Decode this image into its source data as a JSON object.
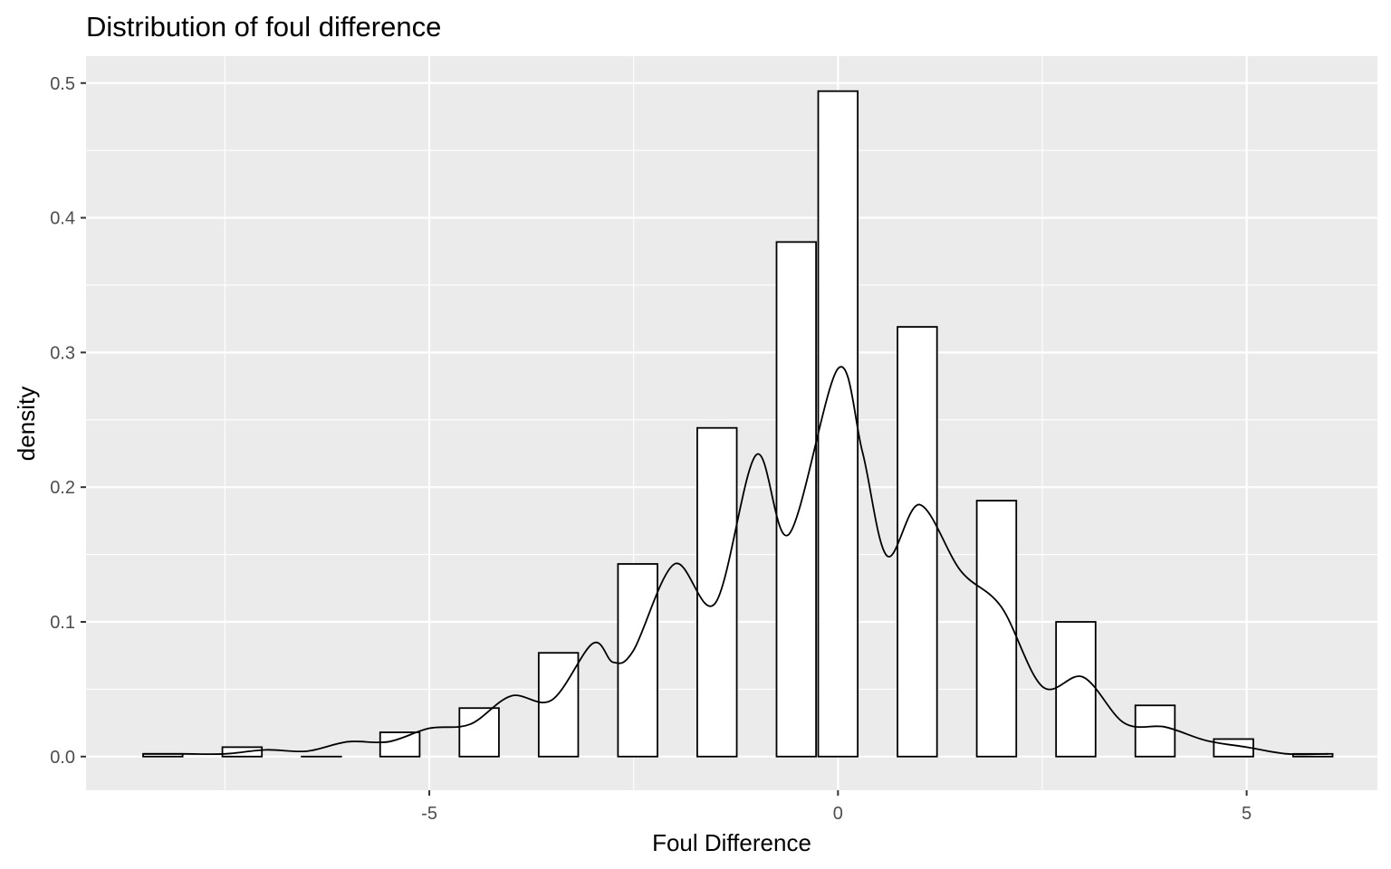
{
  "chart_data": {
    "type": "bar",
    "title": "Distribution of foul difference",
    "xlabel": "Foul Difference",
    "ylabel": "density",
    "xlim": [
      -9.2,
      6.6
    ],
    "ylim": [
      -0.025,
      0.52
    ],
    "x_ticks": [
      -5,
      0,
      5
    ],
    "x_tick_labels": [
      "-5",
      "0",
      "5"
    ],
    "y_ticks": [
      0.0,
      0.1,
      0.2,
      0.3,
      0.4,
      0.5
    ],
    "y_tick_labels": [
      "0.0",
      "0.1",
      "0.2",
      "0.3",
      "0.4",
      "0.5"
    ],
    "grid": true,
    "legend": "none",
    "bin_width": 0.4833,
    "bins": [
      {
        "x": -8.26,
        "density": 0.002
      },
      {
        "x": -7.29,
        "density": 0.007
      },
      {
        "x": -6.32,
        "density": 0.0
      },
      {
        "x": -5.36,
        "density": 0.018
      },
      {
        "x": -4.39,
        "density": 0.036
      },
      {
        "x": -3.42,
        "density": 0.077
      },
      {
        "x": -2.45,
        "density": 0.143
      },
      {
        "x": -1.48,
        "density": 0.244
      },
      {
        "x": -0.51,
        "density": 0.382
      },
      {
        "x": 0.0,
        "density": 0.494
      },
      {
        "x": 0.97,
        "density": 0.319
      },
      {
        "x": 1.94,
        "density": 0.19
      },
      {
        "x": 2.91,
        "density": 0.1
      },
      {
        "x": 3.88,
        "density": 0.038
      },
      {
        "x": 4.84,
        "density": 0.013
      },
      {
        "x": 5.81,
        "density": 0.002
      }
    ],
    "density_curve": {
      "x": [
        -8.5,
        -8.0,
        -7.5,
        -7.0,
        -6.5,
        -6.0,
        -5.5,
        -5.0,
        -4.5,
        -4.0,
        -3.5,
        -3.0,
        -2.75,
        -2.5,
        -2.0,
        -1.5,
        -1.0,
        -0.6,
        0.0,
        0.3,
        0.6,
        1.0,
        1.5,
        2.0,
        2.5,
        3.0,
        3.5,
        4.0,
        4.5,
        5.0,
        5.5,
        6.0
      ],
      "y": [
        0.002,
        0.002,
        0.002,
        0.005,
        0.004,
        0.011,
        0.011,
        0.021,
        0.024,
        0.045,
        0.042,
        0.084,
        0.07,
        0.079,
        0.143,
        0.114,
        0.224,
        0.165,
        0.288,
        0.226,
        0.149,
        0.187,
        0.138,
        0.111,
        0.052,
        0.059,
        0.025,
        0.022,
        0.012,
        0.007,
        0.002,
        0.002
      ]
    },
    "colors": {
      "panel": "#ebebeb",
      "grid": "#ffffff",
      "bar_fill": "#ffffff",
      "bar_stroke": "#000000",
      "curve": "#000000"
    }
  }
}
